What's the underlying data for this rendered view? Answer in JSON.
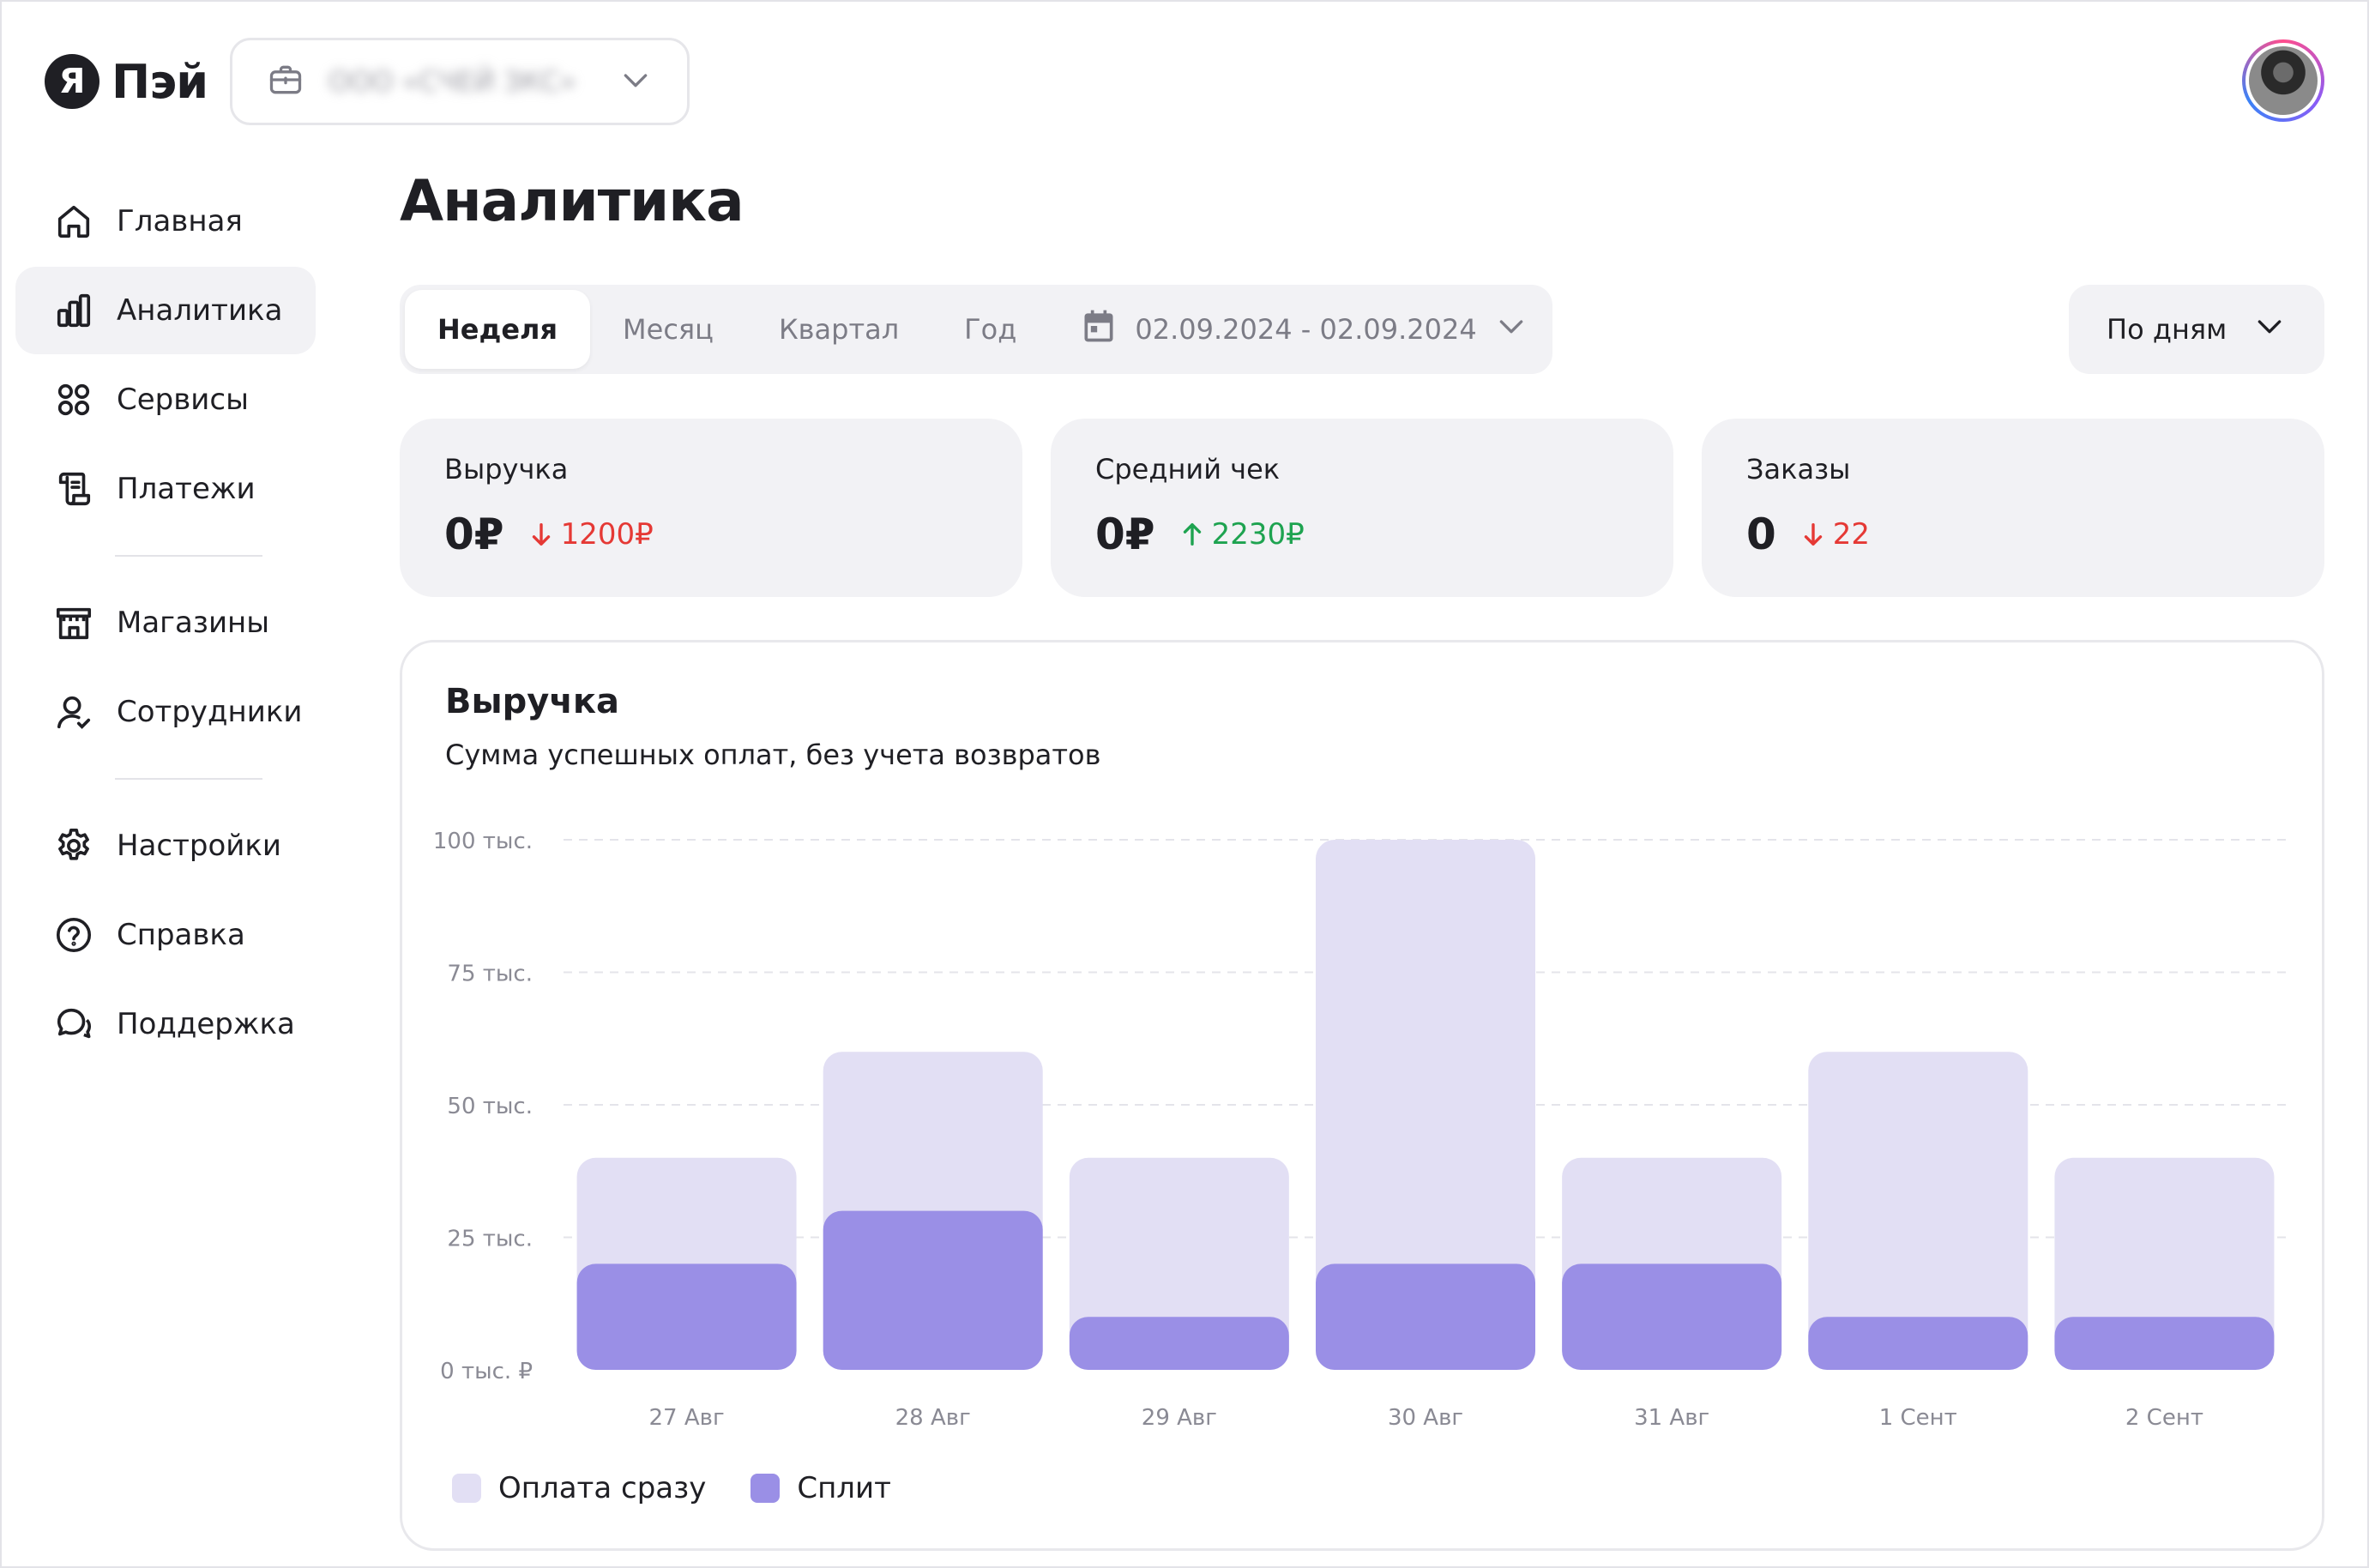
{
  "brand": {
    "badge": "Я",
    "name": "Пэй"
  },
  "org_select": {
    "name": "ООО «СЧЕЙ ЗКС»"
  },
  "user": {
    "avatar": "user-avatar"
  },
  "sidebar": {
    "items": [
      {
        "label": "Главная",
        "icon": "home-icon",
        "active": false
      },
      {
        "label": "Аналитика",
        "icon": "bar-chart-icon",
        "active": true
      },
      {
        "label": "Сервисы",
        "icon": "grid-icon",
        "active": false
      },
      {
        "label": "Платежи",
        "icon": "receipt-icon",
        "active": false
      },
      {
        "label": "Магазины",
        "icon": "store-icon",
        "active": false
      },
      {
        "label": "Сотрудники",
        "icon": "employees-icon",
        "active": false
      },
      {
        "label": "Настройки",
        "icon": "gear-icon",
        "active": false
      },
      {
        "label": "Справка",
        "icon": "help-icon",
        "active": false
      },
      {
        "label": "Поддержка",
        "icon": "chat-icon",
        "active": false
      }
    ]
  },
  "page": {
    "title": "Аналитика"
  },
  "period": {
    "tabs": [
      "Неделя",
      "Месяц",
      "Квартал",
      "Год"
    ],
    "active": "Неделя",
    "date_range": "02.09.2024 - 02.09.2024"
  },
  "grouping": {
    "selected": "По дням"
  },
  "stats": [
    {
      "label": "Выручка",
      "value": "0₽",
      "delta": "1200₽",
      "direction": "down"
    },
    {
      "label": "Средний чек",
      "value": "0₽",
      "delta": "2230₽",
      "direction": "up"
    },
    {
      "label": "Заказы",
      "value": "0",
      "delta": "22",
      "direction": "down"
    }
  ],
  "colors": {
    "accent_light": "#e2dff4",
    "accent": "#9a8fe6",
    "down": "#e53935",
    "up": "#1ea350"
  },
  "chart": {
    "title": "Выручка",
    "subtitle": "Сумма успешных оплат, без учета возвратов"
  },
  "chart_data": {
    "type": "bar",
    "stacked": true,
    "categories": [
      "27 Авг",
      "28 Авг",
      "29 Авг",
      "30 Авг",
      "31 Авг",
      "1 Сент",
      "2 Сент"
    ],
    "series": [
      {
        "name": "Сплит",
        "color": "#9a8fe6",
        "values": [
          20,
          30,
          10,
          20,
          20,
          10,
          10
        ]
      },
      {
        "name": "Оплата сразу",
        "color": "#e2dff4",
        "values": [
          20,
          30,
          30,
          80,
          20,
          50,
          30
        ]
      }
    ],
    "ylim": [
      0,
      100
    ],
    "yticks": [
      0,
      25,
      50,
      75,
      100
    ],
    "ytick_labels": [
      "0 тыс. ₽",
      "25 тыс.",
      "50 тыс.",
      "75 тыс.",
      "100 тыс."
    ],
    "grid": true,
    "legend_position": "bottom-left"
  }
}
